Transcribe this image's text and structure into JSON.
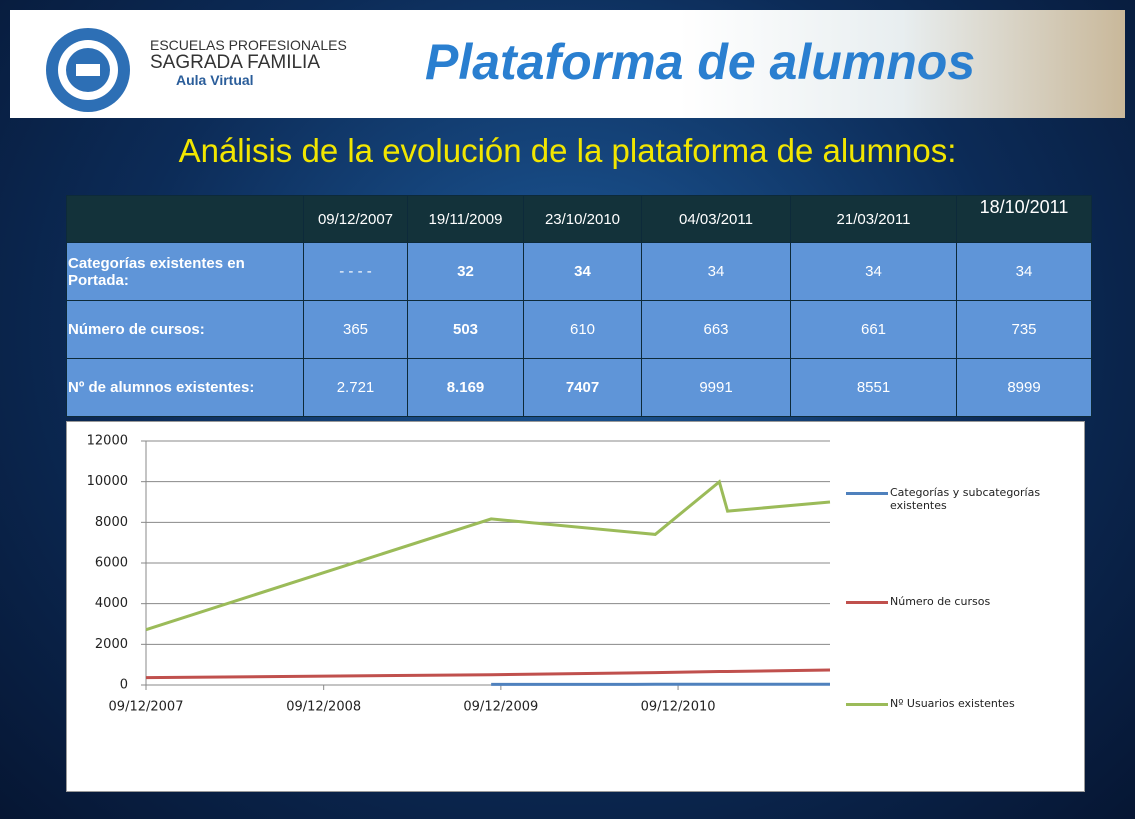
{
  "header": {
    "logo_line1": "ESCUELAS PROFESIONALES",
    "logo_line2": "SAGRADA FAMILIA",
    "logo_line3": "Aula Virtual",
    "title": "Plataforma de alumnos"
  },
  "subtitle": "Análisis de la evolución de la plataforma de alumnos:",
  "table": {
    "columns": [
      "09/12/2007",
      "19/11/2009",
      "23/10/2010",
      "04/03/2011",
      "21/03/2011",
      "18/10/2011"
    ],
    "rows": [
      [
        "Categorías existentes en Portada:",
        "- - - -",
        "32",
        "34",
        "34",
        "34",
        "34"
      ],
      [
        "Número de cursos:",
        "365",
        "503",
        "610",
        "663",
        "661",
        "735"
      ],
      [
        "Nº de alumnos existentes:",
        "2.721",
        "8.169",
        "7407",
        "9991",
        "8551",
        "8999"
      ]
    ]
  },
  "chart_data": {
    "type": "line",
    "x": [
      "09/12/2007",
      "19/11/2009",
      "23/10/2010",
      "04/03/2011",
      "21/03/2011",
      "18/10/2011"
    ],
    "xlim": [
      "09/12/2007",
      "18/10/2011"
    ],
    "xticks": [
      "09/12/2007",
      "09/12/2008",
      "09/12/2009",
      "09/12/2010"
    ],
    "ylim": [
      0,
      12000
    ],
    "yticks": [
      0,
      2000,
      4000,
      6000,
      8000,
      10000,
      12000
    ],
    "grid": true,
    "series": [
      {
        "name": "Categorías y subcategorías existentes",
        "color": "#4f81bd",
        "values": [
          null,
          32,
          34,
          34,
          34,
          34
        ]
      },
      {
        "name": "Número de cursos",
        "color": "#c0504d",
        "values": [
          365,
          503,
          610,
          663,
          661,
          735
        ]
      },
      {
        "name": "Nº Usuarios existentes",
        "color": "#9bbb59",
        "values": [
          2721,
          8169,
          7407,
          9991,
          8551,
          8999
        ]
      }
    ],
    "legend": "right"
  }
}
